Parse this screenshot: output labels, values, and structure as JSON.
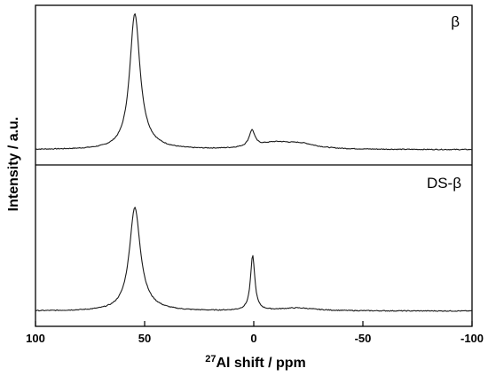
{
  "chart_data": {
    "type": "line",
    "xlabel_sup": "27",
    "xlabel": "Al shift / ppm",
    "ylabel": "Intensity / a.u.",
    "xlim": [
      100,
      -100
    ],
    "x_reversed": true,
    "xticks": [
      100,
      50,
      0,
      -50,
      -100
    ],
    "yticks_shown": false,
    "panels": [
      {
        "label": "β",
        "label_position": "top-right",
        "ylim": [
          0,
          1
        ],
        "peaks": [
          {
            "center": 54.5,
            "height": 0.96,
            "width": 2.8,
            "tail": 6.5
          },
          {
            "center": 0.8,
            "height": 0.115,
            "width": 1.6
          },
          {
            "center": -10,
            "height": 0.045,
            "width": 10
          },
          {
            "center": -22,
            "height": 0.03,
            "width": 8
          }
        ],
        "baseline": 0.02
      },
      {
        "label": "DS-β",
        "label_position": "top-right",
        "ylim": [
          0,
          1
        ],
        "peaks": [
          {
            "center": 54.5,
            "height": 0.72,
            "width": 3.0,
            "tail": 6.5
          },
          {
            "center": 0.5,
            "height": 0.38,
            "width": 1.2
          },
          {
            "center": -20,
            "height": 0.02,
            "width": 10
          }
        ],
        "baseline": 0.02
      }
    ]
  }
}
